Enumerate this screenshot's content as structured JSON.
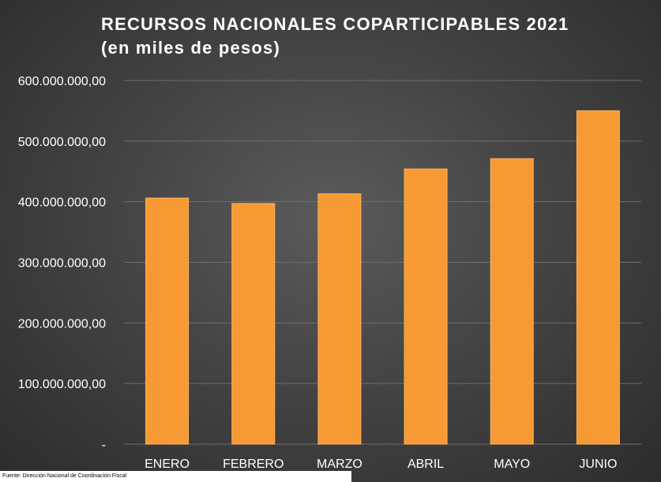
{
  "chart_data": {
    "type": "bar",
    "title": "RECURSOS NACIONALES COPARTICIPABLES 2021",
    "subtitle": "(en miles de pesos)",
    "categories": [
      "ENERO",
      "FEBRERO",
      "MARZO",
      "ABRIL",
      "MAYO",
      "JUNIO"
    ],
    "values": [
      406000000,
      397000000,
      413000000,
      454000000,
      471000000,
      550000000
    ],
    "ylim": [
      0,
      600000000
    ],
    "yticks": [
      0,
      100000000,
      200000000,
      300000000,
      400000000,
      500000000,
      600000000
    ],
    "ytick_labels": [
      "-",
      "100.000.000,00",
      "200.000.000,00",
      "300.000.000,00",
      "400.000.000,00",
      "500.000.000,00",
      "600.000.000,00"
    ],
    "grid": true,
    "bar_color": "#f79a33",
    "bar_edge_color": "#ffb45c",
    "gridline_color": "#6e6e6e",
    "text_color": "#ffffff",
    "source": "Fuente: Dirección Nacional de Coordinación Fiscal"
  }
}
